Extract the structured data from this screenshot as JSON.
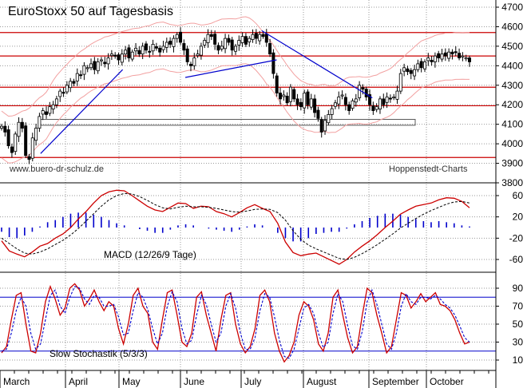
{
  "chart_data": [
    {
      "type": "candlestick",
      "title": "EuroStoxx 50 auf Tagesbasis",
      "source_left": "www.buero-dr-schulz.de",
      "source_right": "Hoppenstedt-Charts",
      "y_ticks": [
        4700,
        4600,
        4500,
        4400,
        4300,
        4200,
        4100,
        4000,
        3900,
        3800
      ],
      "ylim": [
        3800,
        4700
      ],
      "horizontal_levels": [
        4570,
        4450,
        4290,
        4195,
        3930
      ],
      "support_zone": [
        4095,
        4125
      ],
      "trendlines": [
        {
          "from": {
            "month": 0.62,
            "value": 3950
          },
          "to": {
            "month": 2.06,
            "value": 4380
          }
        },
        {
          "from": {
            "month": 3.08,
            "value": 4340
          },
          "to": {
            "month": 4.57,
            "value": 4430
          }
        },
        {
          "from": {
            "month": 4.33,
            "value": 4580
          },
          "to": {
            "month": 6.06,
            "value": 4235
          }
        }
      ],
      "close": [
        4090,
        4060,
        3990,
        3955,
        4050,
        4110,
        4080,
        3940,
        3920,
        4030,
        4080,
        4140,
        4170,
        4150,
        4190,
        4200,
        4230,
        4270,
        4260,
        4300,
        4320,
        4310,
        4360,
        4350,
        4400,
        4390,
        4410,
        4380,
        4420,
        4430,
        4410,
        4440,
        4460,
        4450,
        4430,
        4460,
        4480,
        4440,
        4470,
        4490,
        4460,
        4500,
        4480,
        4470,
        4510,
        4490,
        4470,
        4500,
        4520,
        4510,
        4540,
        4560,
        4520,
        4480,
        4420,
        4400,
        4440,
        4460,
        4500,
        4530,
        4560,
        4550,
        4510,
        4480,
        4500,
        4540,
        4520,
        4480,
        4500,
        4530,
        4550,
        4510,
        4540,
        4560,
        4540,
        4560,
        4550,
        4520,
        4460,
        4360,
        4260,
        4230,
        4250,
        4210,
        4290,
        4230,
        4200,
        4190,
        4260,
        4200,
        4230,
        4160,
        4130,
        4060,
        4120,
        4150,
        4180,
        4210,
        4240,
        4250,
        4200,
        4170,
        4220,
        4230,
        4300,
        4280,
        4240,
        4200,
        4170,
        4190,
        4230,
        4200,
        4240,
        4230,
        4240,
        4270,
        4360,
        4390,
        4370,
        4360,
        4380,
        4410,
        4390,
        4420,
        4440,
        4420,
        4450,
        4440,
        4460,
        4450,
        4470,
        4460,
        4470,
        4440,
        4450,
        4440,
        4420
      ],
      "x_labels": [
        "March",
        "April",
        "May",
        "June",
        "July",
        "August",
        "September",
        "October"
      ]
    },
    {
      "type": "line",
      "label": "MACD (12/26/9 Tage)",
      "y_ticks": [
        60,
        20,
        -20,
        -60
      ],
      "ylim": [
        -80,
        80
      ],
      "series": [
        {
          "role": "macd",
          "values": [
            -25,
            -44,
            -50,
            -55,
            -46,
            -35,
            -30,
            -20,
            -12,
            0,
            16,
            30,
            46,
            60,
            67,
            70,
            69,
            60,
            50,
            40,
            33,
            30,
            38,
            46,
            45,
            36,
            40,
            39,
            30,
            26,
            20,
            28,
            37,
            43,
            36,
            30,
            8,
            -27,
            -47,
            -53,
            -50,
            -48,
            -55,
            -62,
            -69,
            -60,
            -46,
            -35,
            -25,
            -13,
            0,
            12,
            25,
            33,
            40,
            43,
            46,
            52,
            56,
            55,
            49,
            37
          ]
        },
        {
          "role": "signal",
          "values": [
            -20,
            -30,
            -40,
            -48,
            -50,
            -46,
            -40,
            -32,
            -24,
            -14,
            -2,
            12,
            26,
            40,
            52,
            60,
            64,
            63,
            58,
            51,
            43,
            37,
            35,
            38,
            40,
            39,
            39,
            38,
            36,
            33,
            30,
            29,
            31,
            34,
            35,
            34,
            28,
            14,
            -6,
            -22,
            -33,
            -40,
            -46,
            -52,
            -58,
            -60,
            -56,
            -49,
            -41,
            -32,
            -22,
            -12,
            -1,
            8,
            17,
            25,
            32,
            38,
            44,
            48,
            49,
            46
          ]
        },
        {
          "role": "histogram",
          "values": [
            -8,
            -18,
            -20,
            -15,
            -8,
            2,
            10,
            14,
            20,
            26,
            28,
            28,
            24,
            20,
            14,
            8,
            4,
            0,
            -3,
            -6,
            -10,
            -10,
            -4,
            4,
            6,
            4,
            0,
            -2,
            -4,
            -6,
            -8,
            -4,
            2,
            6,
            4,
            0,
            -10,
            -20,
            -26,
            -26,
            -20,
            -12,
            -10,
            -8,
            -8,
            -2,
            6,
            12,
            18,
            22,
            26,
            26,
            24,
            20,
            16,
            12,
            10,
            12,
            10,
            8,
            4,
            2
          ]
        }
      ]
    },
    {
      "type": "line",
      "label": "Slow Stochastik (5/3/3)",
      "y_ticks": [
        90,
        70,
        50,
        30,
        10
      ],
      "ylim": [
        0,
        100
      ],
      "horizontal_levels": [
        80,
        20
      ],
      "series": [
        {
          "role": "k",
          "values": [
            18,
            25,
            55,
            82,
            85,
            50,
            20,
            18,
            40,
            75,
            92,
            78,
            60,
            68,
            90,
            95,
            88,
            70,
            78,
            88,
            75,
            65,
            75,
            70,
            45,
            28,
            50,
            82,
            90,
            70,
            62,
            30,
            22,
            55,
            85,
            88,
            60,
            30,
            25,
            40,
            80,
            86,
            60,
            40,
            20,
            55,
            82,
            85,
            50,
            28,
            18,
            25,
            45,
            82,
            88,
            75,
            40,
            20,
            8,
            15,
            30,
            60,
            75,
            70,
            55,
            28,
            20,
            40,
            80,
            88,
            60,
            35,
            18,
            25,
            60,
            90,
            85,
            60,
            40,
            18,
            25,
            55,
            85,
            82,
            68,
            75,
            84,
            75,
            80,
            85,
            72,
            70,
            65,
            55,
            40,
            28,
            30
          ]
        },
        {
          "role": "d",
          "values": [
            20,
            22,
            40,
            65,
            80,
            70,
            40,
            22,
            28,
            55,
            82,
            88,
            70,
            62,
            80,
            92,
            90,
            78,
            72,
            82,
            80,
            70,
            70,
            72,
            58,
            38,
            40,
            65,
            85,
            80,
            66,
            45,
            28,
            40,
            70,
            86,
            75,
            45,
            28,
            32,
            60,
            82,
            72,
            50,
            30,
            40,
            70,
            84,
            68,
            40,
            22,
            22,
            35,
            65,
            84,
            80,
            58,
            32,
            14,
            12,
            22,
            45,
            68,
            72,
            62,
            40,
            24,
            30,
            62,
            84,
            75,
            48,
            26,
            22,
            42,
            75,
            88,
            72,
            50,
            28,
            22,
            40,
            70,
            84,
            75,
            72,
            80,
            80,
            78,
            82,
            78,
            72,
            68,
            60,
            48,
            35,
            30
          ]
        }
      ]
    }
  ]
}
